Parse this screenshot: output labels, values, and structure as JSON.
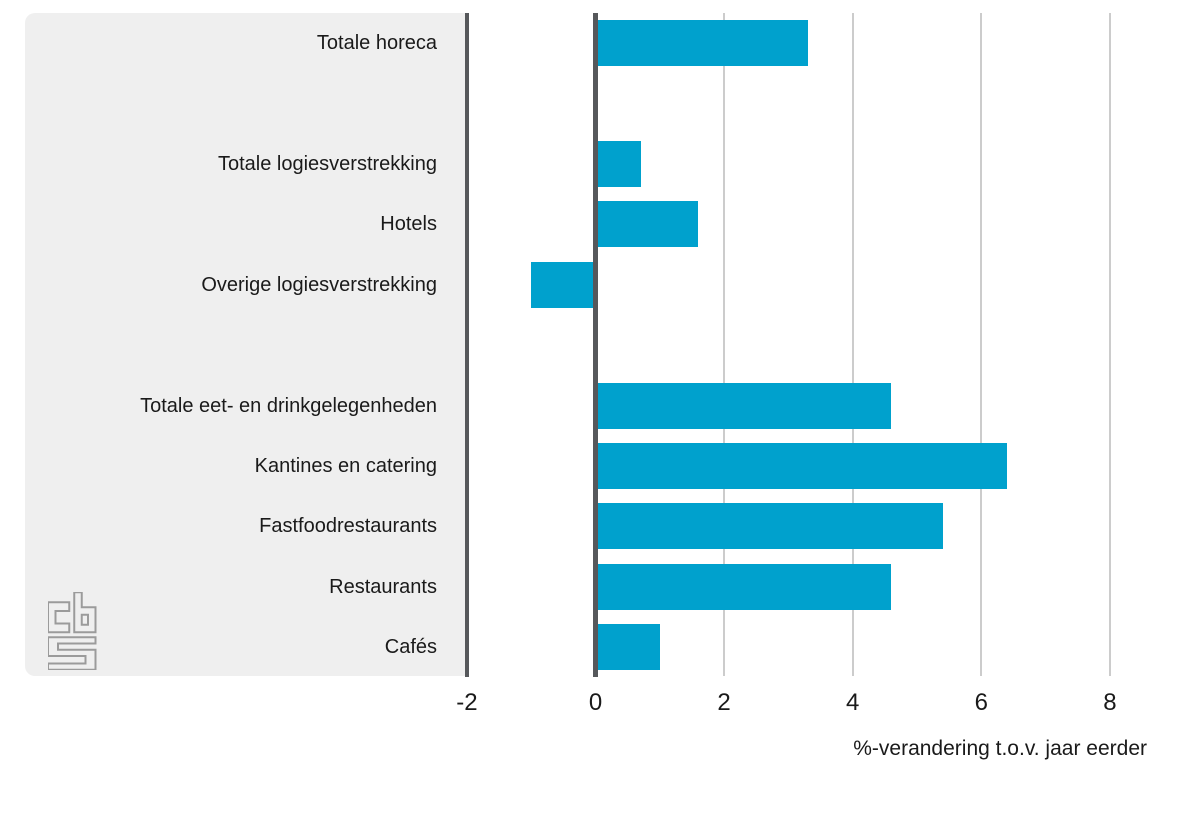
{
  "chart_data": {
    "type": "bar",
    "orientation": "horizontal",
    "title": "",
    "xlabel": "%-verandering t.o.v. jaar eerder",
    "categories": [
      "Totale horeca",
      "Totale logiesverstrekking",
      "Hotels",
      "Overige logiesverstrekking",
      "Totale eet- en drinkgelegenheden",
      "Kantines en catering",
      "Fastfoodrestaurants",
      "Restaurants",
      "Cafés"
    ],
    "values": [
      3.3,
      0.7,
      1.6,
      -1.0,
      4.6,
      6.4,
      5.4,
      4.6,
      1.0
    ],
    "row_slots": [
      0,
      2,
      3,
      4,
      6,
      7,
      8,
      9,
      10
    ],
    "total_slots": 11,
    "x_ticks": [
      -2,
      0,
      2,
      4,
      6,
      8
    ],
    "xlim": [
      -2,
      8.6
    ],
    "grid": "vertical gridlines at 2,4,6,8; dark axis lines at -2 and 0",
    "legend_position": "none"
  },
  "colors": {
    "bar": "#00a1cd",
    "axis_dark": "#56585b",
    "gridline": "#cccccc",
    "label_panel": "#efefef",
    "text": "#1a1a1a",
    "logo": "#9b9b9b"
  },
  "branding": {
    "logo": "cbs-logo"
  }
}
